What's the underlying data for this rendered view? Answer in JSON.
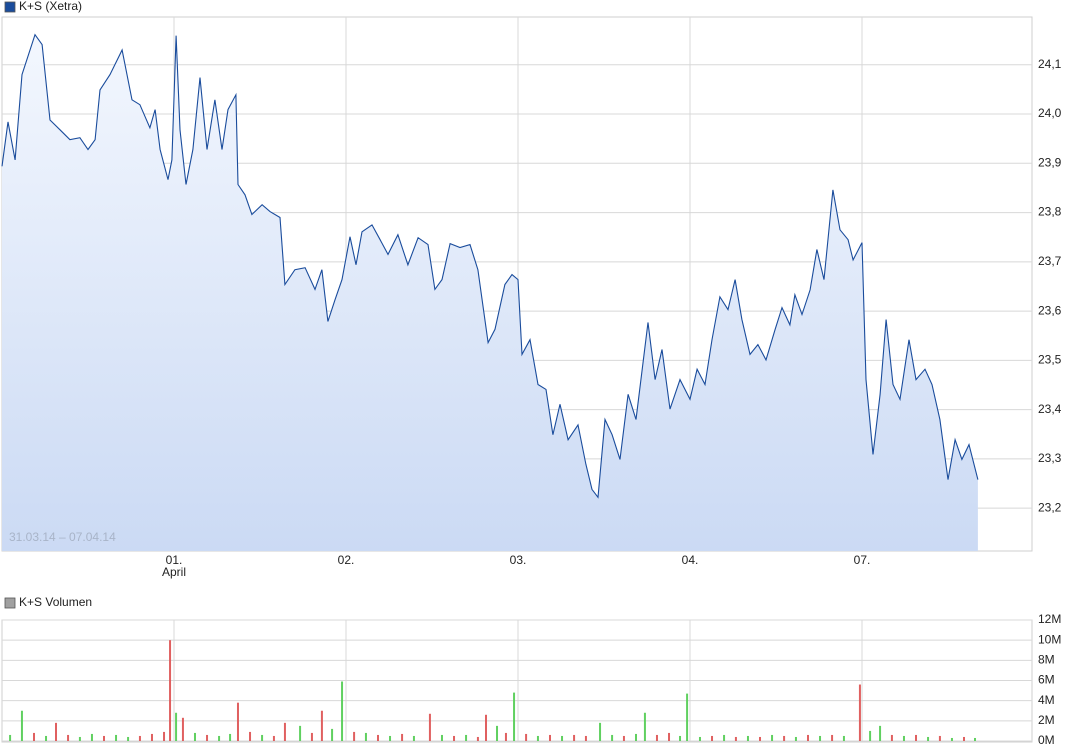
{
  "chart_data": [
    {
      "type": "area",
      "annotation": "31.03.14 – 07.04.14",
      "series": [
        {
          "name": "K+S (Xetra)",
          "color": "#1a4c9c",
          "values": [
            23.894,
            23.984,
            23.907,
            24.08,
            24.161,
            24.141,
            23.988,
            23.968,
            23.948,
            23.952,
            23.928,
            23.948,
            24.049,
            24.08,
            24.13,
            24.029,
            24.019,
            23.972,
            24.009,
            23.928,
            23.867,
            23.907,
            24.159,
            23.968,
            23.857,
            23.928,
            24.074,
            23.928,
            24.029,
            23.928,
            24.009,
            24.039,
            23.857,
            23.836,
            23.796,
            23.816,
            23.802,
            23.79,
            23.654,
            23.684,
            23.688,
            23.644,
            23.684,
            23.579,
            23.623,
            23.664,
            23.751,
            23.694,
            23.761,
            23.775,
            23.745,
            23.715,
            23.755,
            23.694,
            23.749,
            23.735,
            23.644,
            23.664,
            23.737,
            23.729,
            23.735,
            23.684,
            23.536,
            23.563,
            23.654,
            23.674,
            23.664,
            23.512,
            23.542,
            23.451,
            23.441,
            23.349,
            23.411,
            23.339,
            23.369,
            23.289,
            23.238,
            23.222,
            23.38,
            23.349,
            23.299,
            23.431,
            23.38,
            23.577,
            23.461,
            23.522,
            23.401,
            23.461,
            23.421,
            23.482,
            23.451,
            23.542,
            23.629,
            23.603,
            23.664,
            23.583,
            23.512,
            23.532,
            23.501,
            23.562,
            23.607,
            23.572,
            23.633,
            23.593,
            23.643,
            23.725,
            23.664,
            23.846,
            23.765,
            23.745,
            23.704,
            23.739,
            23.461,
            23.309,
            23.431,
            23.583,
            23.451,
            23.421,
            23.542,
            23.461,
            23.482,
            23.451,
            23.38,
            23.258,
            23.339,
            23.299,
            23.329,
            23.258
          ]
        }
      ],
      "x": [
        0,
        0.035,
        0.076,
        0.116,
        0.192,
        0.233,
        0.279,
        0.337,
        0.395,
        0.453,
        0.5,
        0.541,
        0.57,
        0.628,
        0.698,
        0.756,
        0.802,
        0.86,
        0.89,
        0.919,
        0.965,
        0.988,
        1.012,
        1.035,
        1.07,
        1.11,
        1.151,
        1.192,
        1.238,
        1.279,
        1.314,
        1.36,
        1.372,
        1.413,
        1.453,
        1.512,
        1.558,
        1.616,
        1.645,
        1.703,
        1.762,
        1.82,
        1.86,
        1.895,
        1.936,
        1.977,
        2.023,
        2.058,
        2.093,
        2.151,
        2.198,
        2.244,
        2.302,
        2.36,
        2.419,
        2.477,
        2.517,
        2.558,
        2.605,
        2.663,
        2.721,
        2.767,
        2.826,
        2.866,
        2.924,
        2.965,
        3.0,
        3.023,
        3.07,
        3.116,
        3.163,
        3.203,
        3.244,
        3.291,
        3.349,
        3.395,
        3.43,
        3.465,
        3.506,
        3.547,
        3.593,
        3.64,
        3.686,
        3.756,
        3.797,
        3.837,
        3.884,
        3.942,
        4.0,
        4.041,
        4.087,
        4.128,
        4.174,
        4.221,
        4.262,
        4.302,
        4.349,
        4.395,
        4.442,
        4.494,
        4.535,
        4.581,
        4.61,
        4.651,
        4.698,
        4.738,
        4.779,
        4.831,
        4.872,
        4.919,
        4.948,
        5.0,
        5.023,
        5.064,
        5.105,
        5.14,
        5.18,
        5.221,
        5.273,
        5.314,
        5.366,
        5.407,
        5.453,
        5.5,
        5.541,
        5.581,
        5.622,
        5.674
      ],
      "xlim": [
        0,
        6
      ],
      "xticks": [
        {
          "value": 1,
          "label": "01."
        },
        {
          "value": 2,
          "label": "02."
        },
        {
          "value": 3,
          "label": "03."
        },
        {
          "value": 4,
          "label": "04."
        },
        {
          "value": 5,
          "label": "07."
        }
      ],
      "x_sublabel": {
        "value": 1,
        "label": "April"
      },
      "ylim": [
        23.113,
        24.197
      ],
      "yticks": [
        {
          "value": 23.2,
          "label": "23,2"
        },
        {
          "value": 23.3,
          "label": "23,3"
        },
        {
          "value": 23.4,
          "label": "23,4"
        },
        {
          "value": 23.5,
          "label": "23,5"
        },
        {
          "value": 23.6,
          "label": "23,6"
        },
        {
          "value": 23.7,
          "label": "23,7"
        },
        {
          "value": 23.8,
          "label": "23,8"
        },
        {
          "value": 23.9,
          "label": "23,9"
        },
        {
          "value": 24.0,
          "label": "24,0"
        },
        {
          "value": 24.1,
          "label": "24,1"
        }
      ],
      "grid": true
    },
    {
      "type": "bar",
      "series": [
        {
          "name": "K+S Volumen",
          "color": "#a0a0a0",
          "values": [
            600000,
            3000000,
            800000,
            500000,
            1800000,
            600000,
            400000,
            700000,
            500000,
            600000,
            400000,
            500000,
            700000,
            900000,
            10000000,
            2800000,
            2300000,
            800000,
            600000,
            500000,
            700000,
            3800000,
            900000,
            600000,
            500000,
            1800000,
            1500000,
            800000,
            3000000,
            1200000,
            5900000,
            900000,
            800000,
            600000,
            500000,
            700000,
            500000,
            2700000,
            600000,
            500000,
            600000,
            400000,
            2600000,
            1500000,
            800000,
            4800000,
            700000,
            500000,
            600000,
            500000,
            600000,
            500000,
            1800000,
            600000,
            500000,
            700000,
            2800000,
            600000,
            800000,
            500000,
            4700000,
            400000,
            500000,
            600000,
            400000,
            500000,
            400000,
            600000,
            500000,
            400000,
            600000,
            500000,
            600000,
            500000,
            5600000,
            1000000,
            1500000,
            600000,
            500000,
            600000,
            400000,
            500000,
            300000,
            400000,
            300000
          ],
          "colors": [
            "#60d060",
            "#60d060",
            "#e06060",
            "#60d060",
            "#e06060",
            "#e06060",
            "#60d060",
            "#60d060",
            "#e06060",
            "#60d060",
            "#60d060",
            "#e06060",
            "#e06060",
            "#e06060",
            "#e06060",
            "#60d060",
            "#e06060",
            "#60d060",
            "#e06060",
            "#60d060",
            "#60d060",
            "#e06060",
            "#e06060",
            "#60d060",
            "#e06060",
            "#e06060",
            "#60d060",
            "#e06060",
            "#e06060",
            "#60d060",
            "#60d060",
            "#e06060",
            "#60d060",
            "#e06060",
            "#60d060",
            "#e06060",
            "#60d060",
            "#e06060",
            "#60d060",
            "#e06060",
            "#60d060",
            "#e06060",
            "#e06060",
            "#60d060",
            "#e06060",
            "#60d060",
            "#e06060",
            "#60d060",
            "#e06060",
            "#60d060",
            "#e06060",
            "#e06060",
            "#60d060",
            "#60d060",
            "#e06060",
            "#60d060",
            "#60d060",
            "#e06060",
            "#e06060",
            "#60d060",
            "#60d060",
            "#60d060",
            "#e06060",
            "#60d060",
            "#e06060",
            "#60d060",
            "#e06060",
            "#60d060",
            "#e06060",
            "#60d060",
            "#e06060",
            "#60d060",
            "#e06060",
            "#60d060",
            "#e06060",
            "#60d060",
            "#60d060",
            "#e06060",
            "#60d060",
            "#e06060",
            "#60d060",
            "#e06060",
            "#60d060",
            "#e06060",
            "#60d060"
          ]
        }
      ],
      "x": [
        0.047,
        0.116,
        0.186,
        0.256,
        0.314,
        0.384,
        0.453,
        0.523,
        0.593,
        0.663,
        0.733,
        0.802,
        0.872,
        0.942,
        0.977,
        1.012,
        1.052,
        1.122,
        1.192,
        1.262,
        1.326,
        1.372,
        1.442,
        1.512,
        1.581,
        1.645,
        1.733,
        1.802,
        1.86,
        1.919,
        1.977,
        2.047,
        2.116,
        2.186,
        2.256,
        2.326,
        2.395,
        2.488,
        2.558,
        2.628,
        2.698,
        2.767,
        2.814,
        2.878,
        2.93,
        2.977,
        3.047,
        3.116,
        3.186,
        3.256,
        3.326,
        3.395,
        3.477,
        3.547,
        3.616,
        3.686,
        3.738,
        3.808,
        3.878,
        3.942,
        3.983,
        4.058,
        4.128,
        4.198,
        4.267,
        4.337,
        4.407,
        4.477,
        4.547,
        4.616,
        4.686,
        4.756,
        4.826,
        4.895,
        4.988,
        5.047,
        5.105,
        5.174,
        5.244,
        5.314,
        5.384,
        5.453,
        5.523,
        5.593,
        5.657
      ],
      "xlim": [
        0,
        6
      ],
      "ylim": [
        0,
        12000000
      ],
      "yticks": [
        {
          "value": 0,
          "label": "0M"
        },
        {
          "value": 2000000,
          "label": "2M"
        },
        {
          "value": 4000000,
          "label": "4M"
        },
        {
          "value": 6000000,
          "label": "6M"
        },
        {
          "value": 8000000,
          "label": "8M"
        },
        {
          "value": 10000000,
          "label": "10M"
        },
        {
          "value": 12000000,
          "label": "12M"
        }
      ],
      "grid": true
    }
  ]
}
